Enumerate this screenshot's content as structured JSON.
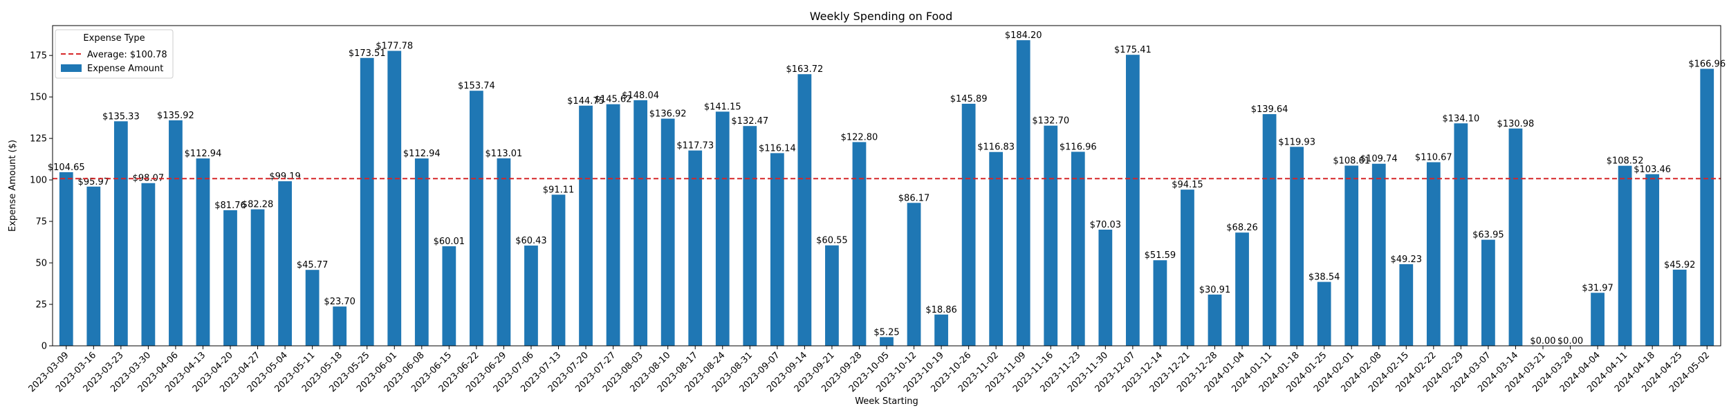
{
  "chart_data": {
    "type": "bar",
    "title": "Weekly Spending on Food",
    "xlabel": "Week Starting",
    "ylabel": "Expense Amount ($)",
    "ylim": [
      0,
      193
    ],
    "yticks": [
      0,
      25,
      50,
      75,
      100,
      125,
      150,
      175
    ],
    "grid": false,
    "legend": {
      "title": "Expense Type",
      "placement": "top-left",
      "entries": [
        "Average: $100.78",
        "Expense Amount"
      ]
    },
    "colors": {
      "bar": "#1f77b4",
      "average": "#d62728"
    },
    "average": 100.78,
    "categories": [
      "2023-03-09",
      "2023-03-16",
      "2023-03-23",
      "2023-03-30",
      "2023-04-06",
      "2023-04-13",
      "2023-04-20",
      "2023-04-27",
      "2023-05-04",
      "2023-05-11",
      "2023-05-18",
      "2023-05-25",
      "2023-06-01",
      "2023-06-08",
      "2023-06-15",
      "2023-06-22",
      "2023-06-29",
      "2023-07-06",
      "2023-07-13",
      "2023-07-20",
      "2023-07-27",
      "2023-08-03",
      "2023-08-10",
      "2023-08-17",
      "2023-08-24",
      "2023-08-31",
      "2023-09-07",
      "2023-09-14",
      "2023-09-21",
      "2023-09-28",
      "2023-10-05",
      "2023-10-12",
      "2023-10-19",
      "2023-10-26",
      "2023-11-02",
      "2023-11-09",
      "2023-11-16",
      "2023-11-23",
      "2023-11-30",
      "2023-12-07",
      "2023-12-14",
      "2023-12-21",
      "2023-12-28",
      "2024-01-04",
      "2024-01-11",
      "2024-01-18",
      "2024-01-25",
      "2024-02-01",
      "2024-02-08",
      "2024-02-15",
      "2024-02-22",
      "2024-02-29",
      "2024-03-07",
      "2024-03-14",
      "2024-03-21",
      "2024-03-28",
      "2024-04-04",
      "2024-04-11",
      "2024-04-18",
      "2024-04-25",
      "2024-05-02"
    ],
    "series": [
      {
        "name": "Expense Amount",
        "values": [
          104.65,
          95.97,
          135.33,
          98.07,
          135.92,
          112.94,
          81.76,
          82.28,
          99.19,
          45.77,
          23.7,
          173.51,
          177.78,
          112.94,
          60.01,
          153.74,
          113.01,
          60.43,
          91.11,
          144.75,
          145.62,
          148.04,
          136.92,
          117.73,
          141.15,
          132.47,
          116.14,
          163.72,
          60.55,
          122.8,
          5.25,
          86.17,
          18.86,
          145.89,
          116.83,
          184.2,
          132.7,
          116.96,
          70.03,
          175.41,
          51.59,
          94.15,
          30.91,
          68.26,
          139.64,
          119.93,
          38.54,
          108.61,
          109.74,
          49.23,
          110.67,
          134.1,
          63.95,
          130.98,
          0.0,
          0.0,
          31.97,
          108.52,
          103.46,
          45.92,
          166.96
        ],
        "labels": [
          "$104.65",
          "$95.97",
          "$135.33",
          "$98.07",
          "$135.92",
          "$112.94",
          "$81.76",
          "$82.28",
          "$99.19",
          "$45.77",
          "$23.70",
          "$173.51",
          "$177.78",
          "$112.94",
          "$60.01",
          "$153.74",
          "$113.01",
          "$60.43",
          "$91.11",
          "$144.75",
          "$145.62",
          "$148.04",
          "$136.92",
          "$117.73",
          "$141.15",
          "$132.47",
          "$116.14",
          "$163.72",
          "$60.55",
          "$122.80",
          "$5.25",
          "$86.17",
          "$18.86",
          "$145.89",
          "$116.83",
          "$184.20",
          "$132.70",
          "$116.96",
          "$70.03",
          "$175.41",
          "$51.59",
          "$94.15",
          "$30.91",
          "$68.26",
          "$139.64",
          "$119.93",
          "$38.54",
          "$108.61",
          "$109.74",
          "$49.23",
          "$110.67",
          "$134.10",
          "$63.95",
          "$130.98",
          "$0.00",
          "$0.00",
          "$31.97",
          "$108.52",
          "$103.46",
          "$45.92",
          "$166.96"
        ]
      }
    ]
  }
}
